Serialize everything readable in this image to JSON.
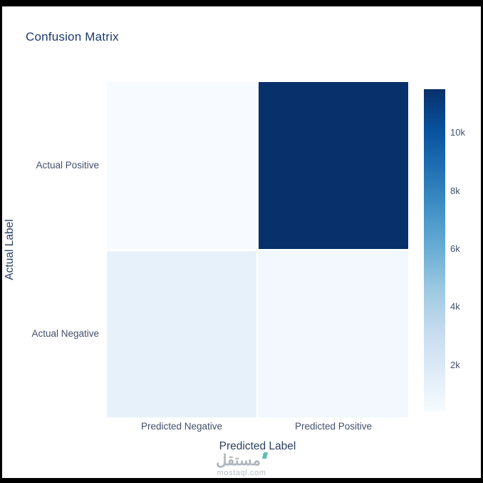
{
  "page": {
    "background": "#ffffff",
    "frame_color": "#000000"
  },
  "chart_data": {
    "type": "heatmap",
    "title": "Confusion Matrix",
    "xlabel": "Predicted Label",
    "ylabel": "Actual Label",
    "x_categories": [
      "Predicted Negative",
      "Predicted Positive"
    ],
    "y_categories": [
      "Actual Positive",
      "Actual Negative"
    ],
    "values": [
      [
        400,
        11500
      ],
      [
        1300,
        700
      ]
    ],
    "zmin": 400,
    "zmax": 11500,
    "colorscale": [
      "#f7fbff",
      "#deebf7",
      "#c6dbef",
      "#9ecae1",
      "#6baed6",
      "#4292c6",
      "#2171b5",
      "#08519c",
      "#08306b"
    ],
    "colorbar_ticks": [
      {
        "value": 2000,
        "label": "2k"
      },
      {
        "value": 4000,
        "label": "4k"
      },
      {
        "value": 6000,
        "label": "6k"
      },
      {
        "value": 8000,
        "label": "8k"
      },
      {
        "value": 10000,
        "label": "10k"
      }
    ],
    "grid": false,
    "legend_position": "right-colorbar"
  },
  "watermark": {
    "arabic": "مستقل",
    "domain": "mostaql.com"
  },
  "colors": {
    "title": "#1d3a6d",
    "axis_label": "#2a3f5f",
    "tick_label": "#42506b",
    "colorbar_tick": "#42506b",
    "watermark_text": "#a9afb5",
    "watermark_domain": "#b9bfc5",
    "watermark_accent": "#35b59b"
  }
}
